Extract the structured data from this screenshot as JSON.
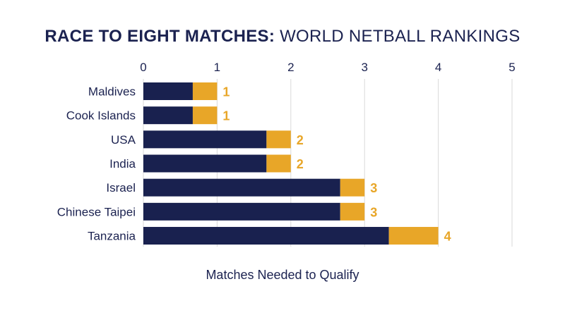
{
  "title_bold": "RACE TO EIGHT MATCHES:",
  "title_light": "WORLD NETBALL RANKINGS",
  "colors": {
    "navy": "#19214f",
    "gold": "#e8a628",
    "grid": "#d9d9d9",
    "text": "#1b2250"
  },
  "chart_data": {
    "type": "bar",
    "orientation": "horizontal",
    "stacked": true,
    "categories": [
      "Maldives",
      "Cook Islands",
      "USA",
      "India",
      "Israel",
      "Chinese Taipei",
      "Tanzania"
    ],
    "series": [
      {
        "values": [
          0.67,
          0.67,
          1.67,
          1.67,
          2.67,
          2.67,
          3.33
        ]
      },
      {
        "values": [
          0.33,
          0.33,
          0.33,
          0.33,
          0.33,
          0.33,
          0.67
        ]
      }
    ],
    "data_labels": [
      "1",
      "1",
      "2",
      "2",
      "3",
      "3",
      "4"
    ],
    "xticks": [
      "0",
      "1",
      "2",
      "3",
      "4",
      "5"
    ],
    "xlim": [
      0,
      5
    ],
    "xlabel": "Matches Needed to Qualify",
    "x_axis_position": "top",
    "grid": true
  }
}
